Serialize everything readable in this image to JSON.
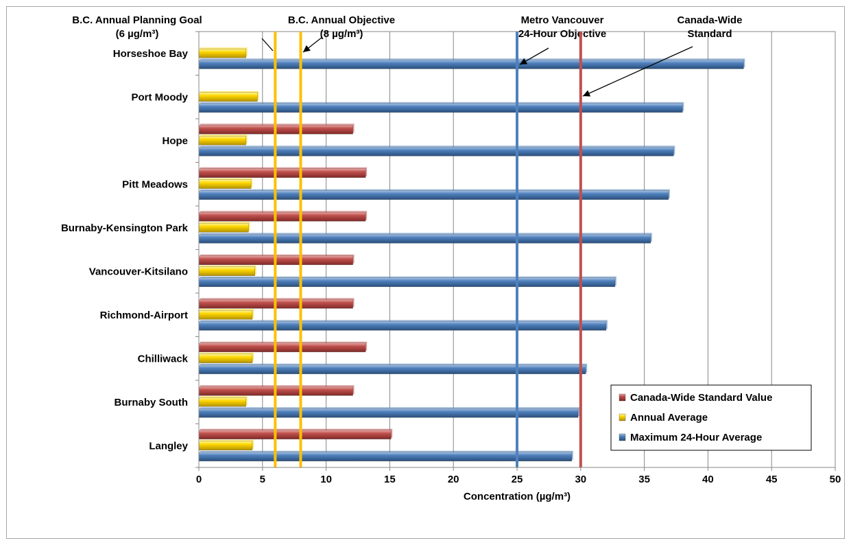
{
  "chart_data": {
    "type": "bar",
    "orientation": "horizontal",
    "xlabel": "Concentration (µg/m³)",
    "xlim": [
      0,
      50
    ],
    "xticks": [
      0,
      5,
      10,
      15,
      20,
      25,
      30,
      35,
      40,
      45,
      50
    ],
    "grid": "vertical",
    "legend_position": "bottom-right",
    "categories": [
      "Horseshoe Bay",
      "Port Moody",
      "Hope",
      "Pitt Meadows",
      "Burnaby-Kensington Park",
      "Vancouver-Kitsilano",
      "Richmond-Airport",
      "Chilliwack",
      "Burnaby South",
      "Langley"
    ],
    "series": [
      {
        "name": "Canada-Wide Standard Value",
        "color": "#c0504d",
        "values": [
          null,
          null,
          12.1,
          13.1,
          13.1,
          12.1,
          12.1,
          13.1,
          12.1,
          15.1
        ]
      },
      {
        "name": "Annual Average",
        "color": "#ffd700",
        "values": [
          3.7,
          4.6,
          3.7,
          4.1,
          3.9,
          4.4,
          4.2,
          4.2,
          3.7,
          4.2
        ]
      },
      {
        "name": "Maximum 24-Hour Average",
        "color": "#4f81bd",
        "values": [
          42.8,
          38.0,
          37.3,
          36.9,
          35.5,
          32.7,
          32.0,
          30.4,
          29.8,
          29.3
        ]
      }
    ],
    "reference_lines": [
      {
        "value": 6,
        "color": "#ffc000",
        "label_lines": [
          "B.C. Annual Planning Goal",
          "(6 µg/m³)"
        ]
      },
      {
        "value": 8,
        "color": "#ffc000",
        "label_lines": [
          "B.C. Annual Objective",
          "(8 µg/m³)"
        ]
      },
      {
        "value": 25,
        "color": "#4f81bd",
        "label_lines": [
          "Metro Vancouver",
          "24-Hour Objective"
        ]
      },
      {
        "value": 30,
        "color": "#c0504d",
        "label_lines": [
          "Canada-Wide",
          "Standard"
        ]
      }
    ]
  }
}
